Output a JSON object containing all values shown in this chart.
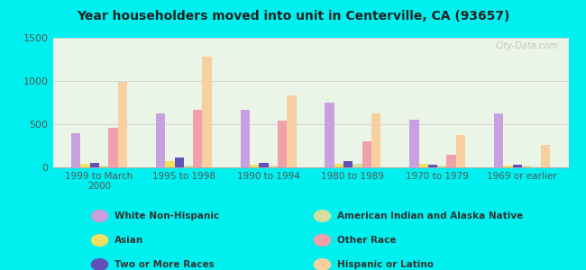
{
  "title": "Year householders moved into unit in Centerville, CA (93657)",
  "categories": [
    "1999 to March\n2000",
    "1995 to 1998",
    "1990 to 1994",
    "1980 to 1989",
    "1970 to 1979",
    "1969 or earlier"
  ],
  "series_order": [
    "White Non-Hispanic",
    "Asian",
    "Two or More Races",
    "American Indian and Alaska Native",
    "Other Race",
    "Hispanic or Latino"
  ],
  "series": {
    "White Non-Hispanic": [
      400,
      620,
      670,
      750,
      555,
      630
    ],
    "Asian": [
      40,
      75,
      35,
      45,
      45,
      25
    ],
    "Two or More Races": [
      55,
      115,
      50,
      75,
      28,
      28
    ],
    "American Indian and Alaska Native": [
      25,
      25,
      25,
      45,
      25,
      25
    ],
    "Other Race": [
      460,
      670,
      540,
      300,
      150,
      0
    ],
    "Hispanic or Latino": [
      990,
      1280,
      830,
      620,
      380,
      260
    ]
  },
  "colors": {
    "White Non-Hispanic": "#c8a0e0",
    "Asian": "#f0e060",
    "Two or More Races": "#6050b8",
    "American Indian and Alaska Native": "#d4dea0",
    "Other Race": "#f0a0a8",
    "Hispanic or Latino": "#f8d0a0"
  },
  "ylim": [
    0,
    1500
  ],
  "yticks": [
    0,
    500,
    1000,
    1500
  ],
  "background_color": "#00f0f0",
  "plot_bg_color": "#eaf5e8",
  "watermark": "City-Data.com",
  "legend_items_left": [
    "White Non-Hispanic",
    "Asian",
    "Two or More Races"
  ],
  "legend_items_right": [
    "American Indian and Alaska Native",
    "Other Race",
    "Hispanic or Latino"
  ]
}
